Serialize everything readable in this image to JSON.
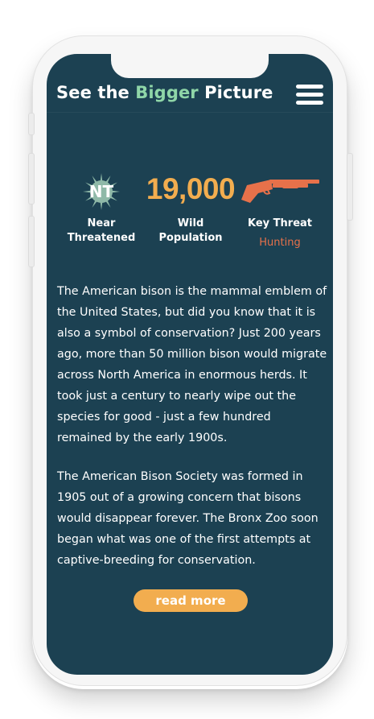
{
  "header": {
    "title_part1": "See the",
    "title_accent": "Bigger",
    "title_part2": "Picture",
    "menu_icon": "hamburger-menu-icon"
  },
  "stats": {
    "status": {
      "code": "NT",
      "label_line1": "Near",
      "label_line2": "Threatened",
      "icon": "conservation-status-icon"
    },
    "population": {
      "value": "19,000",
      "label_line1": "Wild",
      "label_line2": "Population"
    },
    "threat": {
      "label": "Key Threat",
      "value": "Hunting",
      "icon": "shotgun-icon"
    }
  },
  "paragraphs": [
    "The American bison is the mammal emblem of the United States, but did you know that it is also a symbol of conservation? Just 200 years ago, more than 50 million bison would migrate across North America in enormous herds. It took just a century to nearly wipe out the species for good - just a few hundred remained by the early 1900s.",
    "The American Bison Society was formed in 1905 out of a growing concern that bisons would disappear forever. The Bronx Zoo soon began what was one of the first attempts at captive-breeding for conservation."
  ],
  "cta": {
    "label": "read more"
  },
  "colors": {
    "screen_bg": "#1c4152",
    "accent_green": "#8fd6a8",
    "accent_orange": "#f2ad4f",
    "threat_red": "#e7714a",
    "status_badge": "#8fb9a8"
  }
}
